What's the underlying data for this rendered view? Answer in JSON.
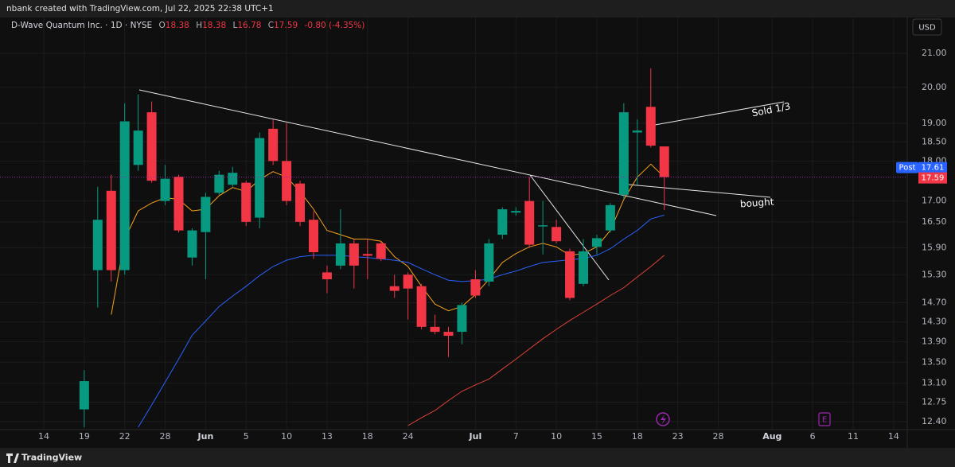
{
  "header": "nbank created with TradingView.com, Jul 22, 2025 22:38 UTC+1",
  "footer": "TradingView",
  "currency": "USD",
  "chart_data": {
    "type": "candlestick",
    "title": "D-Wave Quantum Inc. · 1D · NYSE",
    "ohlc_legend": [
      {
        "label": "O",
        "value": "18.38"
      },
      {
        "label": "H",
        "value": "18.38"
      },
      {
        "label": "L",
        "value": "16.78"
      },
      {
        "label": "C",
        "value": "17.59"
      }
    ],
    "change": "-0.80 (-4.35%)",
    "categories": [
      "14",
      null,
      null,
      "19",
      null,
      null,
      "22",
      null,
      null,
      "28",
      null,
      null,
      "Jun",
      null,
      null,
      "5",
      null,
      null,
      "10",
      null,
      null,
      "13",
      null,
      null,
      "18",
      null,
      null,
      "24",
      null,
      null,
      null,
      null,
      "Jul",
      null,
      null,
      "7",
      null,
      null,
      "10",
      null,
      null,
      "15",
      null,
      null,
      "18",
      null,
      null,
      "23",
      null,
      null,
      "28",
      null,
      null,
      null,
      "Aug",
      null,
      null,
      "6",
      null,
      null,
      "11",
      null,
      null,
      "14"
    ],
    "open": [
      null,
      null,
      null,
      12.62,
      15.4,
      17.25,
      15.4,
      17.9,
      19.3,
      17.0,
      17.6,
      15.68,
      16.26,
      17.2,
      17.4,
      17.45,
      16.6,
      18.85,
      18.0,
      17.43,
      16.55,
      15.35,
      15.5,
      16.0,
      15.76,
      16.0,
      15.05,
      15.3,
      15.05,
      14.2,
      14.1,
      14.1,
      15.2,
      15.15,
      16.2,
      16.72,
      17.0,
      16.4,
      16.38,
      15.82,
      15.1,
      15.92,
      16.3,
      17.15,
      18.75,
      19.45,
      18.38,
      null,
      null,
      null,
      null,
      null,
      null,
      null,
      null,
      null,
      null,
      null,
      null,
      null,
      null,
      null,
      null,
      null
    ],
    "high": [
      null,
      null,
      null,
      13.35,
      17.35,
      17.65,
      19.55,
      19.8,
      19.6,
      17.9,
      17.65,
      16.35,
      17.2,
      17.75,
      17.85,
      17.5,
      18.75,
      19.1,
      19.0,
      17.5,
      16.75,
      15.5,
      16.8,
      16.1,
      16.1,
      16.05,
      15.3,
      15.35,
      15.1,
      14.45,
      14.2,
      14.7,
      15.4,
      16.1,
      16.85,
      16.85,
      17.6,
      17.0,
      16.55,
      15.88,
      16.1,
      16.2,
      16.95,
      19.55,
      19.1,
      20.55,
      18.38,
      null,
      null,
      null,
      null,
      null,
      null,
      null,
      null,
      null,
      null,
      null,
      null,
      null,
      null,
      null,
      null,
      null
    ],
    "low": [
      null,
      null,
      null,
      12.3,
      14.6,
      15.15,
      15.3,
      17.75,
      17.45,
      16.9,
      16.25,
      15.5,
      15.2,
      17.15,
      17.35,
      16.4,
      16.35,
      17.9,
      16.9,
      16.4,
      15.65,
      14.9,
      15.42,
      15.0,
      15.2,
      15.6,
      14.8,
      14.35,
      14.15,
      14.05,
      13.6,
      13.85,
      14.8,
      15.05,
      16.1,
      16.65,
      15.9,
      15.75,
      16.0,
      14.75,
      15.05,
      15.75,
      16.25,
      17.05,
      17.4,
      18.35,
      16.78,
      null,
      null,
      null,
      null,
      null,
      null,
      null,
      null,
      null,
      null,
      null,
      null,
      null,
      null,
      null,
      null,
      null
    ],
    "close": [
      null,
      null,
      null,
      13.14,
      16.55,
      15.4,
      19.05,
      18.8,
      17.5,
      17.55,
      16.3,
      16.3,
      17.1,
      17.65,
      17.7,
      16.5,
      18.6,
      18.0,
      17.0,
      16.5,
      15.8,
      15.2,
      16.0,
      15.5,
      15.72,
      15.65,
      14.95,
      15.0,
      14.2,
      14.1,
      14.02,
      14.65,
      14.85,
      16.0,
      16.8,
      16.76,
      15.97,
      16.42,
      16.05,
      14.8,
      15.82,
      16.12,
      16.9,
      19.3,
      18.8,
      18.4,
      17.59,
      null,
      null,
      null,
      null,
      null,
      null,
      null,
      null,
      null,
      null,
      null,
      null,
      null,
      null,
      null,
      null,
      null
    ],
    "up_color": "#089981",
    "down_color": "#f23645",
    "overlays": [
      {
        "color": "#f7a21b",
        "values": [
          null,
          null,
          null,
          null,
          null,
          14.45,
          16.1,
          16.76,
          16.95,
          17.08,
          17.04,
          16.76,
          16.8,
          17.13,
          17.33,
          17.23,
          17.53,
          17.73,
          17.59,
          17.23,
          16.8,
          16.3,
          16.2,
          16.1,
          16.1,
          16.05,
          15.7,
          15.48,
          15.05,
          14.67,
          14.53,
          14.62,
          14.87,
          15.2,
          15.57,
          15.77,
          15.92,
          16.0,
          15.92,
          15.73,
          15.77,
          15.92,
          16.3,
          17.04,
          17.59,
          17.92,
          17.59,
          null,
          null,
          null,
          null,
          null,
          null,
          null,
          null,
          null,
          null,
          null,
          null,
          null,
          null,
          null,
          null,
          null
        ]
      },
      {
        "color": "#2962ff",
        "values": [
          null,
          null,
          null,
          null,
          null,
          null,
          null,
          12.3,
          12.7,
          13.12,
          13.56,
          14.03,
          14.32,
          14.62,
          14.84,
          15.05,
          15.28,
          15.48,
          15.62,
          15.7,
          15.73,
          15.73,
          15.73,
          15.7,
          15.68,
          15.65,
          15.62,
          15.57,
          15.43,
          15.3,
          15.18,
          15.15,
          15.17,
          15.2,
          15.3,
          15.38,
          15.48,
          15.57,
          15.6,
          15.63,
          15.66,
          15.73,
          15.88,
          16.1,
          16.3,
          16.57,
          16.66,
          null,
          null,
          null,
          null,
          null,
          null,
          null,
          null,
          null,
          null,
          null,
          null,
          null,
          null,
          null,
          null,
          null
        ]
      },
      {
        "color": "#e0413a",
        "values": [
          null,
          null,
          null,
          null,
          null,
          null,
          null,
          null,
          null,
          null,
          null,
          null,
          null,
          null,
          null,
          null,
          null,
          null,
          null,
          null,
          null,
          null,
          null,
          null,
          null,
          null,
          null,
          12.33,
          12.47,
          12.6,
          12.78,
          12.95,
          13.07,
          13.18,
          13.37,
          13.56,
          13.76,
          13.96,
          14.15,
          14.33,
          14.5,
          14.67,
          14.85,
          15.02,
          15.25,
          15.48,
          15.73,
          null,
          null,
          null,
          null,
          null,
          null,
          null,
          null,
          null,
          null,
          null,
          null,
          null,
          null,
          null,
          null,
          null
        ]
      }
    ],
    "log_scale": true,
    "ylim": [
      12.26,
      22.1
    ],
    "yticks": [
      {
        "value": 21,
        "label": "21.00"
      },
      {
        "value": 20,
        "label": "20.00"
      },
      {
        "value": 19,
        "label": "19.00"
      },
      {
        "value": 18.5,
        "label": "18.50"
      },
      {
        "value": 18,
        "label": "18.00"
      },
      {
        "value": 17,
        "label": "17.00"
      },
      {
        "value": 16.5,
        "label": "16.50"
      },
      {
        "value": 15.9,
        "label": "15.90"
      },
      {
        "value": 15.3,
        "label": "15.30"
      },
      {
        "value": 14.7,
        "label": "14.70"
      },
      {
        "value": 14.3,
        "label": "14.30"
      },
      {
        "value": 13.9,
        "label": "13.90"
      },
      {
        "value": 13.5,
        "label": "13.50"
      },
      {
        "value": 13.1,
        "label": "13.10"
      },
      {
        "value": 12.75,
        "label": "12.75"
      },
      {
        "value": 12.4,
        "label": "12.40"
      }
    ],
    "grid": true,
    "post_label": "Post",
    "post_price": 17.61,
    "last_price": 17.59,
    "annotations": [
      "Sold 1/3",
      "bought"
    ],
    "earnings_marker": "E"
  }
}
